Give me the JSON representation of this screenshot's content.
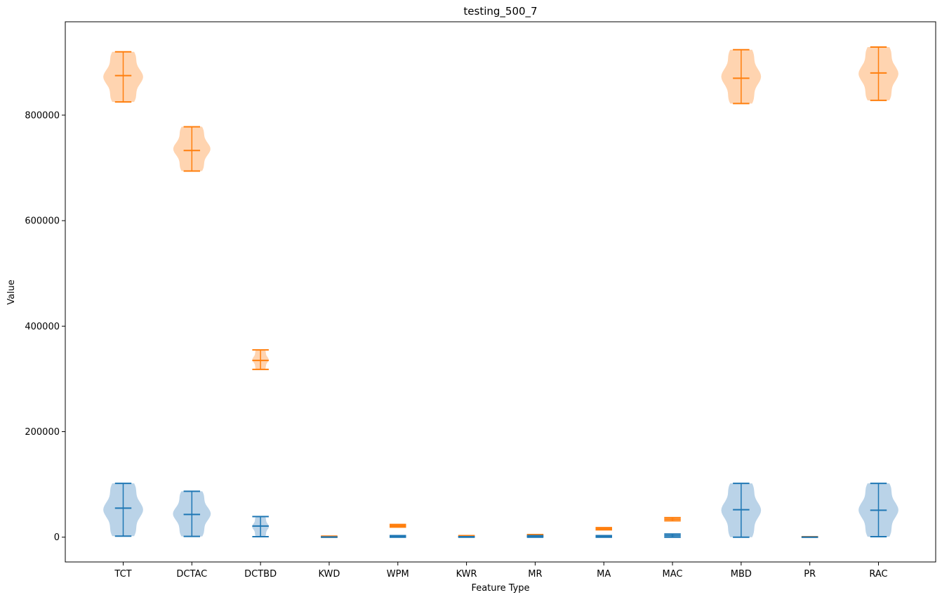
{
  "chart_data": {
    "type": "violin",
    "title": "testing_500_7",
    "xlabel": "Feature Type",
    "ylabel": "Value",
    "categories": [
      "TCT",
      "DCTAC",
      "DCTBD",
      "KWD",
      "WPM",
      "KWR",
      "MR",
      "MA",
      "MAC",
      "MBD",
      "PR",
      "RAC"
    ],
    "yticks": [
      0,
      200000,
      400000,
      600000,
      800000
    ],
    "ytick_labels": [
      "0",
      "200000",
      "400000",
      "600000",
      "800000"
    ],
    "ylim": [
      -47000,
      977000
    ],
    "grid": false,
    "legend": "none",
    "series": [
      {
        "color": "#ff7f0e",
        "fill": "#ffd4b0",
        "stats": [
          {
            "min": 825000,
            "mean": 875000,
            "max": 920000
          },
          {
            "min": 694000,
            "mean": 733000,
            "max": 778000
          },
          {
            "min": 318000,
            "mean": 335000,
            "max": 355000
          },
          {
            "min": 0,
            "mean": 1000,
            "max": 2000
          },
          {
            "min": 19000,
            "mean": 21500,
            "max": 24000
          },
          {
            "min": 1000,
            "mean": 2000,
            "max": 3000
          },
          {
            "min": 2000,
            "mean": 3500,
            "max": 5000
          },
          {
            "min": 14000,
            "mean": 16000,
            "max": 18000
          },
          {
            "min": 31000,
            "mean": 34000,
            "max": 37000
          },
          {
            "min": 822000,
            "mean": 870000,
            "max": 924000
          },
          {
            "min": 0,
            "mean": 500,
            "max": 1000
          },
          {
            "min": 828000,
            "mean": 880000,
            "max": 929000
          }
        ]
      },
      {
        "color": "#1f77b4",
        "fill": "#bad3e8",
        "stats": [
          {
            "min": 2000,
            "mean": 55000,
            "max": 102000
          },
          {
            "min": 1500,
            "mean": 43000,
            "max": 87000
          },
          {
            "min": 1000,
            "mean": 21000,
            "max": 39000
          },
          {
            "min": 0,
            "mean": 200,
            "max": 500
          },
          {
            "min": 0,
            "mean": 1500,
            "max": 3000
          },
          {
            "min": 0,
            "mean": 500,
            "max": 1000
          },
          {
            "min": 0,
            "mean": 1000,
            "max": 3000
          },
          {
            "min": 0,
            "mean": 1500,
            "max": 3000
          },
          {
            "min": 0,
            "mean": 3000,
            "max": 6000
          },
          {
            "min": 0,
            "mean": 52000,
            "max": 102000
          },
          {
            "min": 0,
            "mean": 100,
            "max": 300
          },
          {
            "min": 1000,
            "mean": 51000,
            "max": 102000
          }
        ]
      }
    ]
  }
}
